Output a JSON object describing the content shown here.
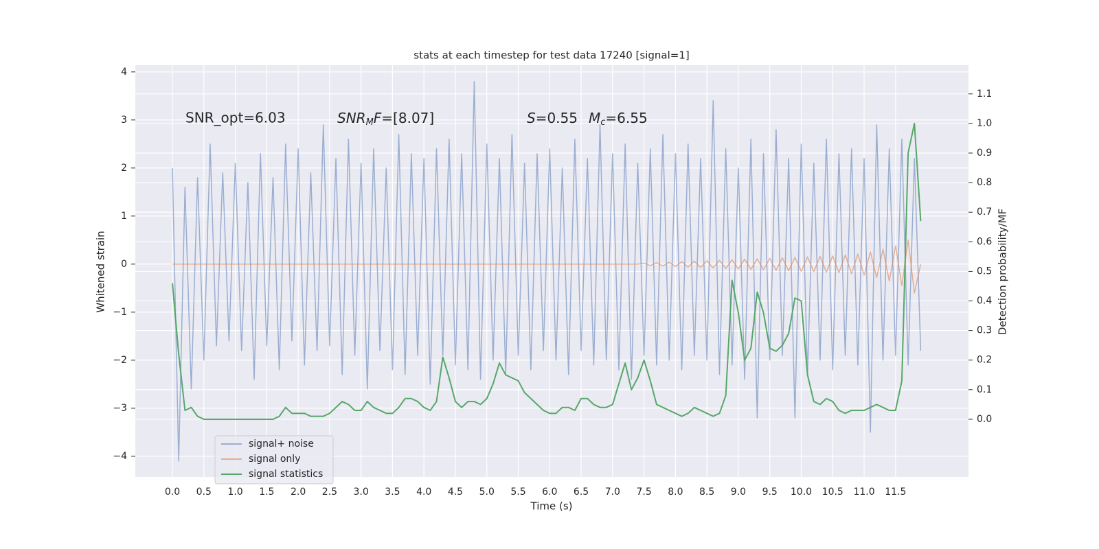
{
  "chart_data": {
    "type": "line",
    "title": "stats at each timestep for test data 17240 [signal=1]",
    "xlabel": "Time (s)",
    "ylabel": "Whitened strain",
    "y2label": "Detection probability/MF",
    "annotations": [
      "SNR_opt=6.03",
      [
        "SNR",
        "M",
        "F",
        "=[8.07]"
      ],
      [
        "S",
        "=0.55",
        "M",
        "c",
        "=6.55"
      ]
    ],
    "grid": true,
    "legend": "lower left",
    "xlim": [
      -0.59,
      12.66
    ],
    "ylim": [
      -4.43,
      4.14
    ],
    "y2lim": [
      -0.195,
      1.197
    ],
    "xticks": [
      {
        "value": 0,
        "label": "0.0"
      },
      {
        "value": 0.5,
        "label": "0.5"
      },
      {
        "value": 1,
        "label": "1.0"
      },
      {
        "value": 1.5,
        "label": "1.5"
      },
      {
        "value": 2,
        "label": "2.0"
      },
      {
        "value": 2.5,
        "label": "2.5"
      },
      {
        "value": 3,
        "label": "3.0"
      },
      {
        "value": 3.5,
        "label": "3.5"
      },
      {
        "value": 4,
        "label": "4.0"
      },
      {
        "value": 4.5,
        "label": "4.5"
      },
      {
        "value": 5,
        "label": "5.0"
      },
      {
        "value": 5.5,
        "label": "5.5"
      },
      {
        "value": 6,
        "label": "6.0"
      },
      {
        "value": 6.5,
        "label": "6.5"
      },
      {
        "value": 7,
        "label": "7.0"
      },
      {
        "value": 7.5,
        "label": "7.5"
      },
      {
        "value": 8,
        "label": "8.0"
      },
      {
        "value": 8.5,
        "label": "8.5"
      },
      {
        "value": 9,
        "label": "9.0"
      },
      {
        "value": 9.5,
        "label": "9.5"
      },
      {
        "value": 10,
        "label": "10.0"
      },
      {
        "value": 10.5,
        "label": "10.5"
      },
      {
        "value": 11,
        "label": "11.0"
      },
      {
        "value": 11.5,
        "label": "11.5"
      }
    ],
    "yticks": [
      {
        "value": -4,
        "label": "−4"
      },
      {
        "value": -3,
        "label": "−3"
      },
      {
        "value": -2,
        "label": "−2"
      },
      {
        "value": -1,
        "label": "−1"
      },
      0,
      1,
      2,
      3,
      4
    ],
    "y2ticks": [
      {
        "value": 0,
        "label": "0.0"
      },
      {
        "value": 0.1,
        "label": "0.1"
      },
      {
        "value": 0.2,
        "label": "0.2"
      },
      {
        "value": 0.3,
        "label": "0.3"
      },
      {
        "value": 0.4,
        "label": "0.4"
      },
      {
        "value": 0.5,
        "label": "0.5"
      },
      {
        "value": 0.6,
        "label": "0.6"
      },
      {
        "value": 0.7,
        "label": "0.7"
      },
      {
        "value": 0.8,
        "label": "0.8"
      },
      {
        "value": 0.9,
        "label": "0.9"
      },
      {
        "value": 1,
        "label": "1.0"
      },
      {
        "value": 1.1,
        "label": "1.1"
      }
    ],
    "x": [
      0,
      0.1,
      0.2,
      0.3,
      0.4,
      0.5,
      0.6,
      0.7,
      0.8,
      0.9,
      1,
      1.1,
      1.2,
      1.3,
      1.4,
      1.5,
      1.6,
      1.7,
      1.8,
      1.9,
      2,
      2.1,
      2.2,
      2.3,
      2.4,
      2.5,
      2.6,
      2.7,
      2.8,
      2.9,
      3,
      3.1,
      3.2,
      3.3,
      3.4,
      3.5,
      3.6,
      3.7,
      3.8,
      3.9,
      4,
      4.1,
      4.2,
      4.3,
      4.4,
      4.5,
      4.6,
      4.7,
      4.8,
      4.9,
      5,
      5.1,
      5.2,
      5.3,
      5.4,
      5.5,
      5.6,
      5.7,
      5.8,
      5.9,
      6,
      6.1,
      6.2,
      6.3,
      6.4,
      6.5,
      6.6,
      6.7,
      6.8,
      6.9,
      7,
      7.1,
      7.2,
      7.3,
      7.4,
      7.5,
      7.6,
      7.7,
      7.8,
      7.9,
      8,
      8.1,
      8.2,
      8.3,
      8.4,
      8.5,
      8.6,
      8.7,
      8.8,
      8.9,
      9,
      9.1,
      9.2,
      9.3,
      9.4,
      9.5,
      9.6,
      9.7,
      9.8,
      9.9,
      10,
      10.1,
      10.2,
      10.3,
      10.4,
      10.5,
      10.6,
      10.7,
      10.8,
      10.9,
      11,
      11.1,
      11.2,
      11.3,
      11.4,
      11.5,
      11.6,
      11.7,
      11.8,
      11.9
    ],
    "series": [
      {
        "name": "signal+ noise",
        "color": "#4c72b0",
        "opacity": 0.5,
        "values": [
          2.0,
          -4.1,
          1.6,
          -2.6,
          1.8,
          -2.0,
          2.5,
          -1.7,
          1.9,
          -1.6,
          2.1,
          -1.8,
          1.7,
          -2.4,
          2.3,
          -1.7,
          1.8,
          -2.2,
          2.5,
          -1.6,
          2.4,
          -2.1,
          1.9,
          -1.8,
          2.9,
          -1.7,
          2.2,
          -2.3,
          2.6,
          -1.9,
          2.1,
          -2.6,
          2.4,
          -1.8,
          2.0,
          -2.2,
          2.7,
          -2.3,
          2.3,
          -1.9,
          2.2,
          -2.5,
          2.4,
          -1.9,
          2.6,
          -2.1,
          2.3,
          -2.2,
          3.8,
          -2.4,
          2.5,
          -2.0,
          2.2,
          -2.3,
          2.7,
          -1.9,
          2.1,
          -2.2,
          2.3,
          -1.8,
          2.4,
          -2.0,
          2.0,
          -2.3,
          2.6,
          -1.8,
          2.2,
          -2.1,
          2.9,
          -2.0,
          2.3,
          -2.2,
          2.5,
          -2.4,
          2.1,
          -1.9,
          2.4,
          -2.1,
          2.7,
          -2.0,
          2.3,
          -2.2,
          2.5,
          -1.9,
          2.2,
          -2.0,
          3.4,
          -2.3,
          2.4,
          -2.1,
          2.0,
          -2.4,
          2.6,
          -3.2,
          2.3,
          -2.0,
          2.8,
          -1.9,
          2.2,
          -3.2,
          2.5,
          -2.3,
          2.1,
          -2.0,
          2.6,
          -2.2,
          2.3,
          -1.9,
          2.4,
          -2.1,
          2.2,
          -3.5,
          2.9,
          -2.0,
          2.4,
          -1.9,
          2.6,
          -2.1,
          2.2,
          -1.8
        ]
      },
      {
        "name": "signal only",
        "color": "#dd8452",
        "opacity": 0.6,
        "values": [
          0,
          0,
          0,
          0,
          0,
          0,
          0,
          0,
          0,
          0,
          0,
          0,
          0,
          0,
          0,
          0,
          0,
          0,
          0,
          0,
          0,
          0,
          0,
          0,
          0,
          0,
          0,
          0,
          0,
          0,
          0,
          0,
          0,
          0,
          0,
          0,
          0,
          0,
          0,
          0,
          0,
          0,
          0,
          0,
          0,
          0,
          0,
          0,
          0,
          0,
          0,
          0,
          0,
          0,
          0,
          0,
          0,
          0,
          0,
          0,
          0,
          0,
          0,
          0,
          0,
          0,
          0,
          0,
          0,
          0,
          0,
          0,
          0,
          0,
          0,
          0.02,
          -0.03,
          0.03,
          -0.04,
          0.04,
          -0.05,
          0.05,
          -0.06,
          0.06,
          -0.07,
          0.07,
          -0.08,
          0.08,
          -0.09,
          0.09,
          -0.1,
          0.1,
          -0.11,
          0.11,
          -0.12,
          0.12,
          -0.13,
          0.13,
          -0.14,
          0.14,
          -0.15,
          0.15,
          -0.16,
          0.16,
          -0.17,
          0.17,
          -0.18,
          0.19,
          -0.2,
          0.21,
          -0.23,
          0.25,
          -0.28,
          0.31,
          -0.35,
          0.38,
          -0.45,
          0.5,
          -0.6,
          0
        ]
      },
      {
        "name": "signal statistics",
        "color": "#55a868",
        "opacity": 1,
        "axis": "y2",
        "values": [
          0.46,
          0.22,
          0.03,
          0.04,
          0.01,
          0,
          0,
          0,
          0,
          0,
          0,
          0,
          0,
          0,
          0,
          0,
          0,
          0.01,
          0.04,
          0.02,
          0.02,
          0.02,
          0.01,
          0.01,
          0.01,
          0.02,
          0.04,
          0.06,
          0.05,
          0.03,
          0.03,
          0.06,
          0.04,
          0.03,
          0.02,
          0.02,
          0.04,
          0.07,
          0.07,
          0.06,
          0.04,
          0.03,
          0.06,
          0.21,
          0.14,
          0.06,
          0.04,
          0.06,
          0.06,
          0.05,
          0.07,
          0.12,
          0.19,
          0.15,
          0.14,
          0.13,
          0.09,
          0.07,
          0.05,
          0.03,
          0.02,
          0.02,
          0.04,
          0.04,
          0.03,
          0.07,
          0.07,
          0.05,
          0.04,
          0.04,
          0.05,
          0.12,
          0.19,
          0.1,
          0.14,
          0.2,
          0.13,
          0.05,
          0.04,
          0.03,
          0.02,
          0.01,
          0.02,
          0.04,
          0.03,
          0.02,
          0.01,
          0.02,
          0.08,
          0.47,
          0.36,
          0.2,
          0.24,
          0.43,
          0.36,
          0.24,
          0.23,
          0.25,
          0.29,
          0.41,
          0.4,
          0.15,
          0.06,
          0.05,
          0.07,
          0.06,
          0.03,
          0.02,
          0.03,
          0.03,
          0.03,
          0.04,
          0.05,
          0.04,
          0.03,
          0.03,
          0.13,
          0.9,
          1.0,
          0.67
        ]
      }
    ]
  }
}
